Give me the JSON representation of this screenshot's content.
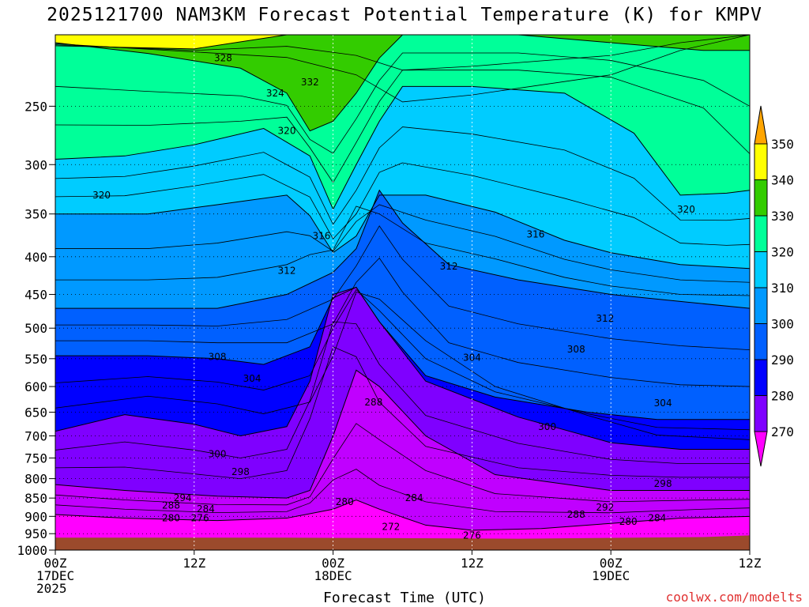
{
  "chart_data": {
    "type": "heatmap",
    "title": "2025121700 NAM3KM Forecast Potential Temperature (K) for KMPV",
    "xlabel": "Forecast Time (UTC)",
    "ylabel": "",
    "credit": "coolwx.com/modelts",
    "y_scale": "log-pressure (hPa), inverted",
    "ylim": [
      1000,
      200
    ],
    "y_ticks": [
      250,
      300,
      350,
      400,
      450,
      500,
      550,
      600,
      650,
      700,
      750,
      800,
      850,
      900,
      950,
      1000
    ],
    "x_ticks": [
      {
        "hour": 0,
        "lines": [
          "00Z",
          "17DEC",
          "2025"
        ]
      },
      {
        "hour": 12,
        "lines": [
          "12Z"
        ]
      },
      {
        "hour": 24,
        "lines": [
          "00Z",
          "18DEC"
        ]
      },
      {
        "hour": 36,
        "lines": [
          "12Z"
        ]
      },
      {
        "hour": 48,
        "lines": [
          "00Z",
          "19DEC"
        ]
      },
      {
        "hour": 60,
        "lines": [
          "12Z"
        ]
      }
    ],
    "xlim": [
      0,
      60
    ],
    "grid": true,
    "colorbar": {
      "labels": [
        270,
        280,
        290,
        300,
        310,
        320,
        330,
        340,
        350
      ],
      "colors": [
        "#ff00ff",
        "#c000ff",
        "#7f00ff",
        "#0000ff",
        "#0060ff",
        "#0099ff",
        "#00ccff",
        "#00ff99",
        "#33cc00",
        "#ffff00",
        "#ffa500"
      ]
    },
    "contour_labels": [
      {
        "text": "328",
        "hour": 14.5,
        "p": 215
      },
      {
        "text": "332",
        "hour": 22,
        "p": 232
      },
      {
        "text": "324",
        "hour": 19,
        "p": 240
      },
      {
        "text": "320",
        "hour": 20,
        "p": 270
      },
      {
        "text": "320",
        "hour": 4,
        "p": 330
      },
      {
        "text": "316",
        "hour": 23,
        "p": 375
      },
      {
        "text": "312",
        "hour": 20,
        "p": 418
      },
      {
        "text": "312",
        "hour": 34,
        "p": 412
      },
      {
        "text": "316",
        "hour": 41.5,
        "p": 373
      },
      {
        "text": "320",
        "hour": 54.5,
        "p": 345
      },
      {
        "text": "312",
        "hour": 47.5,
        "p": 485
      },
      {
        "text": "308",
        "hour": 14,
        "p": 547
      },
      {
        "text": "304",
        "hour": 17,
        "p": 585
      },
      {
        "text": "304",
        "hour": 36,
        "p": 548
      },
      {
        "text": "308",
        "hour": 45,
        "p": 534
      },
      {
        "text": "304",
        "hour": 52.5,
        "p": 632
      },
      {
        "text": "300",
        "hour": 14,
        "p": 741
      },
      {
        "text": "298",
        "hour": 16,
        "p": 783
      },
      {
        "text": "288",
        "hour": 27.5,
        "p": 630
      },
      {
        "text": "300",
        "hour": 42.5,
        "p": 680
      },
      {
        "text": "294",
        "hour": 11,
        "p": 850
      },
      {
        "text": "288",
        "hour": 10,
        "p": 870
      },
      {
        "text": "284",
        "hour": 13,
        "p": 880
      },
      {
        "text": "280",
        "hour": 10,
        "p": 905
      },
      {
        "text": "276",
        "hour": 12.5,
        "p": 905
      },
      {
        "text": "280",
        "hour": 25,
        "p": 860
      },
      {
        "text": "284",
        "hour": 31,
        "p": 850
      },
      {
        "text": "272",
        "hour": 29,
        "p": 930
      },
      {
        "text": "276",
        "hour": 36,
        "p": 955
      },
      {
        "text": "288",
        "hour": 45,
        "p": 895
      },
      {
        "text": "292",
        "hour": 47.5,
        "p": 875
      },
      {
        "text": "280",
        "hour": 49.5,
        "p": 915
      },
      {
        "text": "284",
        "hour": 52,
        "p": 905
      },
      {
        "text": "298",
        "hour": 52.5,
        "p": 813
      }
    ],
    "layers": [
      {
        "top": [
          [
            0,
            207
          ],
          [
            12,
            209
          ],
          [
            20,
            200
          ],
          [
            26,
            200
          ],
          [
            30,
            200
          ],
          [
            36,
            200
          ],
          [
            48,
            200
          ],
          [
            54,
            200
          ],
          [
            60,
            200
          ]
        ],
        "color": "#33cc00"
      },
      {
        "top": [
          [
            0,
            205
          ],
          [
            8,
            212
          ],
          [
            16,
            222
          ],
          [
            20,
            240
          ],
          [
            22,
            270
          ],
          [
            24,
            262
          ],
          [
            26,
            240
          ],
          [
            28,
            215
          ],
          [
            30,
            200
          ],
          [
            40,
            200
          ],
          [
            48,
            205
          ],
          [
            56,
            210
          ],
          [
            60,
            210
          ]
        ],
        "color": "#00ff99"
      },
      {
        "top": [
          [
            0,
            295
          ],
          [
            6,
            292
          ],
          [
            12,
            282
          ],
          [
            18,
            268
          ],
          [
            22,
            292
          ],
          [
            24,
            345
          ],
          [
            26,
            300
          ],
          [
            28,
            262
          ],
          [
            30,
            235
          ],
          [
            36,
            235
          ],
          [
            44,
            240
          ],
          [
            50,
            272
          ],
          [
            54,
            330
          ],
          [
            58,
            328
          ],
          [
            60,
            325
          ]
        ],
        "color": "#00ccff"
      },
      {
        "top": [
          [
            0,
            350
          ],
          [
            8,
            350
          ],
          [
            14,
            340
          ],
          [
            20,
            330
          ],
          [
            22,
            352
          ],
          [
            24,
            395
          ],
          [
            26,
            375
          ],
          [
            28,
            330
          ],
          [
            32,
            330
          ],
          [
            38,
            348
          ],
          [
            44,
            380
          ],
          [
            48,
            395
          ],
          [
            54,
            410
          ],
          [
            60,
            415
          ]
        ],
        "color": "#0099ff"
      },
      {
        "top": [
          [
            0,
            470
          ],
          [
            8,
            470
          ],
          [
            14,
            470
          ],
          [
            20,
            450
          ],
          [
            24,
            420
          ],
          [
            26,
            390
          ],
          [
            28,
            325
          ],
          [
            30,
            360
          ],
          [
            34,
            410
          ],
          [
            40,
            430
          ],
          [
            48,
            450
          ],
          [
            54,
            460
          ],
          [
            60,
            470
          ]
        ],
        "color": "#0060ff"
      },
      {
        "top": [
          [
            0,
            545
          ],
          [
            8,
            545
          ],
          [
            14,
            550
          ],
          [
            18,
            560
          ],
          [
            22,
            530
          ],
          [
            24,
            455
          ],
          [
            26,
            440
          ],
          [
            28,
            490
          ],
          [
            32,
            580
          ],
          [
            38,
            620
          ],
          [
            46,
            650
          ],
          [
            52,
            665
          ],
          [
            60,
            665
          ]
        ],
        "color": "#0000ff"
      },
      {
        "top": [
          [
            0,
            690
          ],
          [
            6,
            655
          ],
          [
            12,
            675
          ],
          [
            16,
            700
          ],
          [
            20,
            680
          ],
          [
            22,
            590
          ],
          [
            24,
            450
          ],
          [
            26,
            440
          ],
          [
            28,
            490
          ],
          [
            32,
            590
          ],
          [
            40,
            660
          ],
          [
            48,
            715
          ],
          [
            54,
            730
          ],
          [
            60,
            730
          ]
        ],
        "color": "#7f00ff"
      },
      {
        "top": [
          [
            0,
            815
          ],
          [
            6,
            830
          ],
          [
            14,
            845
          ],
          [
            20,
            850
          ],
          [
            22,
            830
          ],
          [
            24,
            700
          ],
          [
            26,
            570
          ],
          [
            28,
            600
          ],
          [
            32,
            700
          ],
          [
            38,
            790
          ],
          [
            48,
            830
          ],
          [
            56,
            830
          ],
          [
            60,
            830
          ]
        ],
        "color": "#c000ff"
      },
      {
        "top": [
          [
            0,
            895
          ],
          [
            6,
            905
          ],
          [
            14,
            912
          ],
          [
            20,
            905
          ],
          [
            24,
            880
          ],
          [
            26,
            855
          ],
          [
            28,
            880
          ],
          [
            32,
            925
          ],
          [
            36,
            940
          ],
          [
            42,
            935
          ],
          [
            48,
            920
          ],
          [
            54,
            905
          ],
          [
            60,
            900
          ]
        ],
        "color": "#ff00ff"
      }
    ],
    "ground": {
      "color": "#9b4a2c",
      "p_top": [
        [
          0,
          962
        ],
        [
          20,
          962
        ],
        [
          40,
          965
        ],
        [
          56,
          960
        ],
        [
          60,
          955
        ]
      ]
    }
  }
}
